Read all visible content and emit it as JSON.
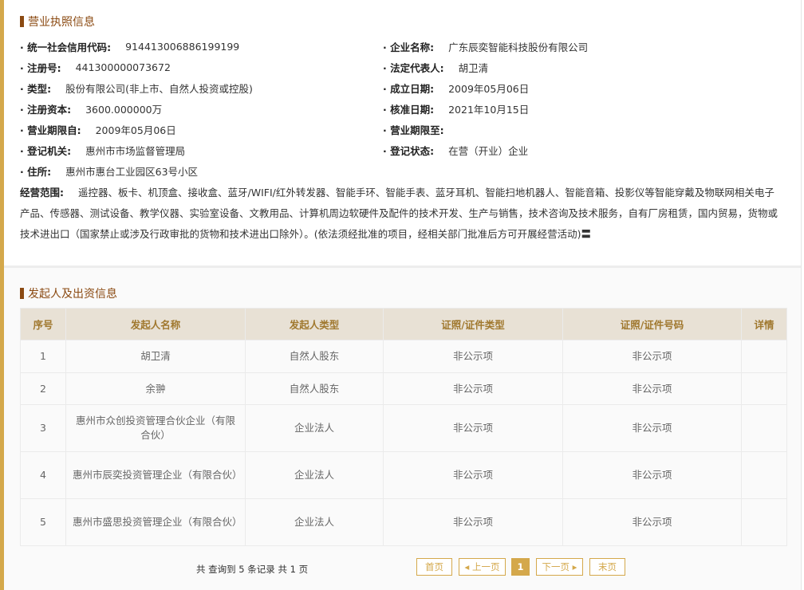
{
  "license": {
    "title": "营业执照信息",
    "left": [
      {
        "k": "统一社会信用代码:",
        "v": "914413006886199199"
      },
      {
        "k": "注册号:",
        "v": "441300000073672"
      },
      {
        "k": "类型:",
        "v": "股份有限公司(非上市、自然人投资或控股)"
      },
      {
        "k": "注册资本:",
        "v": "3600.000000万"
      },
      {
        "k": "营业期限自:",
        "v": "2009年05月06日"
      },
      {
        "k": "登记机关:",
        "v": "惠州市市场监督管理局"
      },
      {
        "k": "住所:",
        "v": "惠州市惠台工业园区63号小区"
      }
    ],
    "right": [
      {
        "k": "企业名称:",
        "v": "广东辰奕智能科技股份有限公司"
      },
      {
        "k": "法定代表人:",
        "v": "胡卫清"
      },
      {
        "k": "成立日期:",
        "v": "2009年05月06日"
      },
      {
        "k": "核准日期:",
        "v": "2021年10月15日"
      },
      {
        "k": "营业期限至:",
        "v": ""
      },
      {
        "k": "登记状态:",
        "v": "在营（开业）企业"
      }
    ],
    "scope_label": "经营范围:",
    "scope": "遥控器、板卡、机顶盒、接收盒、蓝牙/WIFI/红外转发器、智能手环、智能手表、蓝牙耳机、智能扫地机器人、智能音箱、投影仪等智能穿戴及物联网相关电子产品、传感器、测试设备、教学仪器、实验室设备、文教用品、计算机周边软硬件及配件的技术开发、生产与销售，技术咨询及技术服务，自有厂房租赁，国内贸易，货物或技术进出口（国家禁止或涉及行政审批的货物和技术进出口除外）。(依法须经批准的项目，经相关部门批准后方可开展经营活动)〓"
  },
  "investors": {
    "title": "发起人及出资信息",
    "headers": [
      "序号",
      "发起人名称",
      "发起人类型",
      "证照/证件类型",
      "证照/证件号码",
      "详情"
    ],
    "rows": [
      [
        "1",
        "胡卫清",
        "自然人股东",
        "非公示项",
        "非公示项",
        ""
      ],
      [
        "2",
        "余翀",
        "自然人股东",
        "非公示项",
        "非公示项",
        ""
      ],
      [
        "3",
        "惠州市众创投资管理合伙企业（有限合伙）",
        "企业法人",
        "非公示项",
        "非公示项",
        ""
      ],
      [
        "4",
        "惠州市辰奕投资管理企业（有限合伙）",
        "企业法人",
        "非公示项",
        "非公示项",
        ""
      ],
      [
        "5",
        "惠州市盛思投资管理企业（有限合伙）",
        "企业法人",
        "非公示项",
        "非公示项",
        ""
      ]
    ]
  },
  "pagination": {
    "info": "共 查询到 5 条记录 共 1 页",
    "first": "首页",
    "prev": "◂ 上一页",
    "current": "1",
    "next": "下一页 ▸",
    "last": "末页"
  },
  "colors": {
    "accent": "#d4a84b",
    "title": "#8b4a12",
    "header_bg": "#e8e1d5"
  }
}
